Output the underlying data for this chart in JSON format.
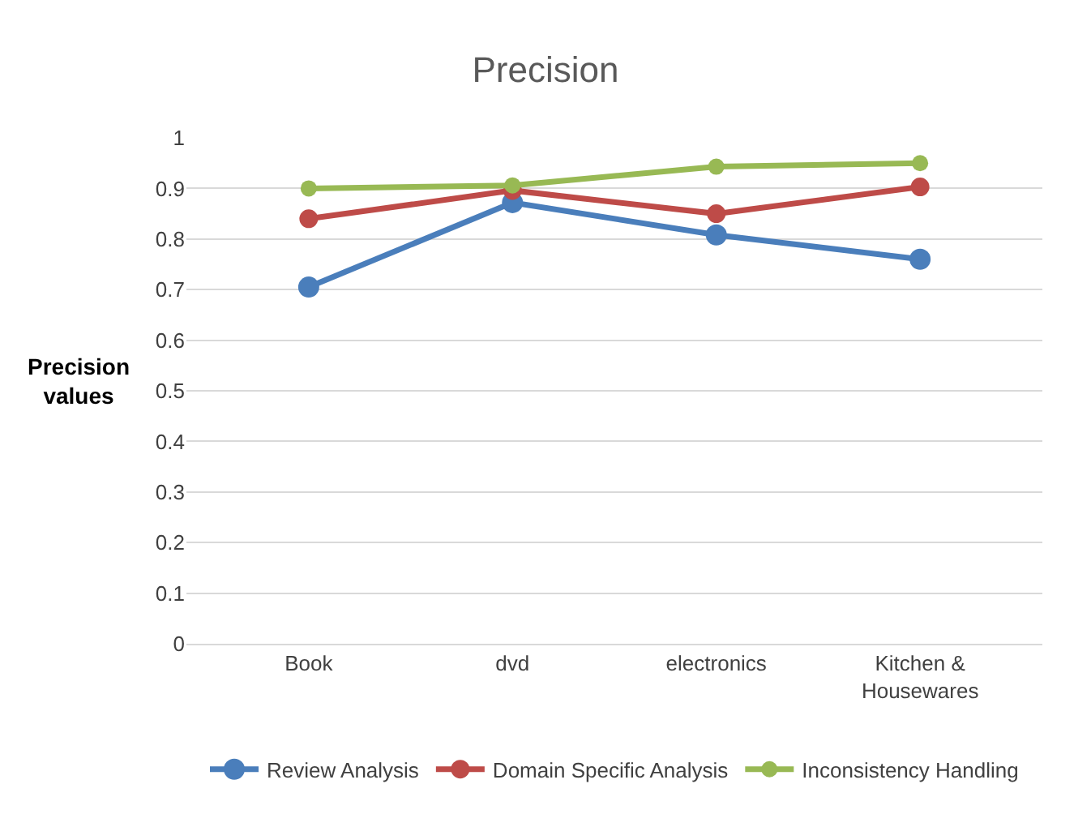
{
  "chart_data": {
    "type": "line",
    "title": "Precision",
    "ylabel": "Precision\nvalues",
    "categories": [
      "Book",
      "dvd",
      "electronics",
      "Kitchen &\nHousewares"
    ],
    "series": [
      {
        "name": "Review Analysis",
        "color": "#4a7ebb",
        "values": [
          0.705,
          0.872,
          0.808,
          0.76
        ]
      },
      {
        "name": "Domain Specific Analysis",
        "color": "#be4b48",
        "values": [
          0.84,
          0.896,
          0.85,
          0.903
        ]
      },
      {
        "name": "Inconsistency Handling",
        "color": "#98b954",
        "values": [
          0.9,
          0.906,
          0.943,
          0.95
        ]
      }
    ],
    "ylim": [
      0,
      1
    ],
    "yticks": [
      0,
      0.1,
      0.2,
      0.3,
      0.4,
      0.5,
      0.6,
      0.7,
      0.8,
      0.9,
      1
    ],
    "grid": "y",
    "legend": "bottom",
    "marker": "circle",
    "line_style": "solid"
  }
}
